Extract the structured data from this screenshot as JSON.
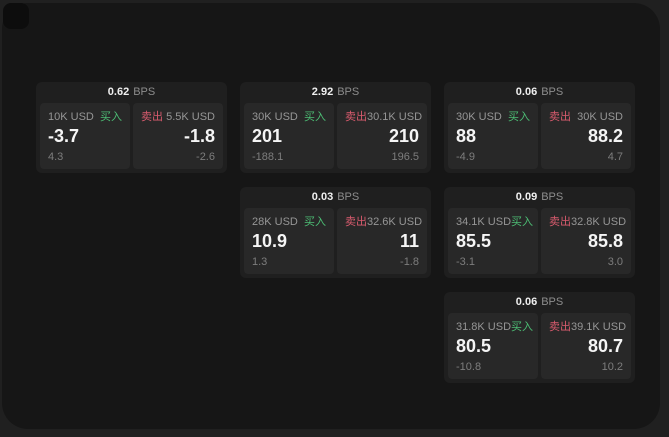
{
  "colors": {
    "buy_green": "#4cbd74",
    "sell_red": "#d95b6e",
    "panel_bg": "#161616",
    "card_bg": "#1f1f1f",
    "tile_bg": "#282828"
  },
  "cards": [
    {
      "spread": "0.62",
      "unit": "BPS",
      "buy": {
        "size": "10K USD",
        "side": "买入",
        "price": "-3.7",
        "delta": "4.3"
      },
      "sell": {
        "side": "卖出",
        "size": "5.5K USD",
        "price": "-1.8",
        "delta": "-2.6"
      }
    },
    {
      "spread": "2.92",
      "unit": "BPS",
      "buy": {
        "size": "30K USD",
        "side": "买入",
        "price": "201",
        "delta": "-188.1"
      },
      "sell": {
        "side": "卖出",
        "size": "30.1K USD",
        "price": "210",
        "delta": "196.5"
      }
    },
    {
      "spread": "0.06",
      "unit": "BPS",
      "buy": {
        "size": "30K USD",
        "side": "买入",
        "price": "88",
        "delta": "-4.9"
      },
      "sell": {
        "side": "卖出",
        "size": "30K USD",
        "price": "88.2",
        "delta": "4.7"
      }
    },
    {
      "spread": "0.03",
      "unit": "BPS",
      "buy": {
        "size": "28K USD",
        "side": "买入",
        "price": "10.9",
        "delta": "1.3"
      },
      "sell": {
        "side": "卖出",
        "size": "32.6K USD",
        "price": "11",
        "delta": "-1.8"
      }
    },
    {
      "spread": "0.09",
      "unit": "BPS",
      "buy": {
        "size": "34.1K USD",
        "side": "买入",
        "price": "85.5",
        "delta": "-3.1"
      },
      "sell": {
        "side": "卖出",
        "size": "32.8K USD",
        "price": "85.8",
        "delta": "3.0"
      }
    },
    {
      "spread": "0.06",
      "unit": "BPS",
      "buy": {
        "size": "31.8K USD",
        "side": "买入",
        "price": "80.5",
        "delta": "-10.8"
      },
      "sell": {
        "side": "卖出",
        "size": "39.1K USD",
        "price": "80.7",
        "delta": "10.2"
      }
    }
  ]
}
